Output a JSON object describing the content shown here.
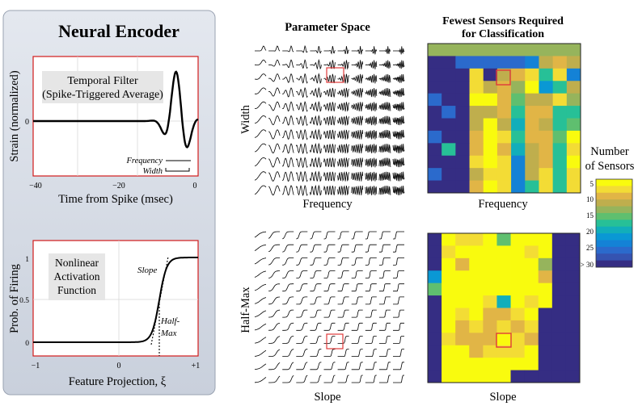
{
  "left_panel": {
    "title": "Neural  Encoder",
    "filter_plot": {
      "ylabel": "Strain (normalized)",
      "xlabel": "Time from Spike (msec)",
      "yticks": [
        "0"
      ],
      "xticks": [
        "−40",
        "−20",
        "0"
      ],
      "legend_line1": "Temporal Filter",
      "legend_line2": "(Spike-Triggered Average)",
      "freq_label": "Frequency",
      "width_label": "Width"
    },
    "activation_plot": {
      "ylabel": "Prob. of Firing",
      "xlabel": "Feature Projection,  ξ",
      "yticks": [
        "1",
        "0.5",
        "0"
      ],
      "xticks": [
        "−1",
        "0",
        "+1"
      ],
      "legend_line1": "Nonlinear",
      "legend_line2": "Activation",
      "legend_line3": "Function",
      "slope_label": "Slope",
      "halfmax_label1": "Half-",
      "halfmax_label2": "Max"
    }
  },
  "param_space": {
    "title": "Parameter Space",
    "top_ylabel": "Width",
    "top_xlabel": "Frequency",
    "bottom_ylabel": "Half-Max",
    "bottom_xlabel": "Slope"
  },
  "sensors": {
    "title_line1": "Fewest Sensors Required",
    "title_line2": "for Classification",
    "top_xlabel": "Frequency",
    "bottom_xlabel": "Slope"
  },
  "colorbar": {
    "title_line1": "Number",
    "title_line2": "of Sensors",
    "ticks": [
      "5",
      "10",
      "15",
      "20",
      "25",
      "> 30"
    ],
    "colors": [
      "#f9fb0e",
      "#f3dc35",
      "#e1b546",
      "#bfae4d",
      "#96b45c",
      "#5fbf6f",
      "#27c097",
      "#12aeba",
      "#0a98d4",
      "#1482d6",
      "#2b6acc",
      "#3553b1",
      "#352d83"
    ]
  },
  "heatmap_top": {
    "rows": [
      [
        4,
        4,
        4,
        4,
        4,
        4,
        4,
        4,
        4,
        4,
        4
      ],
      [
        12,
        12,
        10,
        10,
        10,
        10,
        10,
        9,
        3,
        2,
        3
      ],
      [
        12,
        12,
        12,
        1,
        12,
        3,
        2,
        1,
        6,
        1,
        9
      ],
      [
        12,
        12,
        12,
        1,
        3,
        2,
        4,
        0,
        8,
        6,
        3
      ],
      [
        10,
        12,
        12,
        0,
        0,
        2,
        5,
        3,
        3,
        1,
        4
      ],
      [
        12,
        10,
        12,
        3,
        3,
        2,
        6,
        2,
        2,
        6,
        6
      ],
      [
        12,
        12,
        12,
        3,
        0,
        3,
        7,
        2,
        3,
        6,
        5
      ],
      [
        10,
        12,
        12,
        2,
        0,
        1,
        6,
        2,
        2,
        5,
        0
      ],
      [
        12,
        6,
        12,
        2,
        0,
        2,
        7,
        3,
        2,
        6,
        1
      ],
      [
        12,
        12,
        12,
        1,
        0,
        1,
        9,
        3,
        2,
        6,
        0
      ],
      [
        10,
        12,
        12,
        3,
        1,
        1,
        9,
        3,
        1,
        6,
        1
      ],
      [
        12,
        12,
        12,
        2,
        0,
        1,
        9,
        6,
        1,
        6,
        1
      ]
    ]
  },
  "heatmap_bottom": {
    "rows": [
      [
        12,
        0,
        1,
        1,
        0,
        5,
        0,
        0,
        0,
        12,
        12
      ],
      [
        12,
        1,
        0,
        0,
        0,
        0,
        0,
        1,
        0,
        12,
        12
      ],
      [
        12,
        0,
        2,
        0,
        0,
        0,
        0,
        0,
        4,
        12,
        12
      ],
      [
        8,
        0,
        0,
        0,
        0,
        0,
        0,
        0,
        2,
        12,
        12
      ],
      [
        5,
        0,
        0,
        0,
        0,
        0,
        0,
        0,
        0,
        12,
        12
      ],
      [
        12,
        0,
        0,
        0,
        1,
        7,
        0,
        1,
        0,
        12,
        12
      ],
      [
        12,
        0,
        1,
        0,
        2,
        2,
        1,
        0,
        12,
        12,
        12
      ],
      [
        12,
        0,
        2,
        1,
        2,
        1,
        2,
        1,
        12,
        12,
        12
      ],
      [
        12,
        1,
        2,
        2,
        2,
        0,
        1,
        2,
        12,
        12,
        12
      ],
      [
        12,
        0,
        0,
        2,
        1,
        1,
        1,
        0,
        12,
        12,
        12
      ],
      [
        12,
        0,
        0,
        0,
        0,
        0,
        0,
        0,
        12,
        12,
        12
      ],
      [
        12,
        0,
        0,
        0,
        0,
        0,
        12,
        12,
        12,
        12,
        12
      ]
    ]
  }
}
